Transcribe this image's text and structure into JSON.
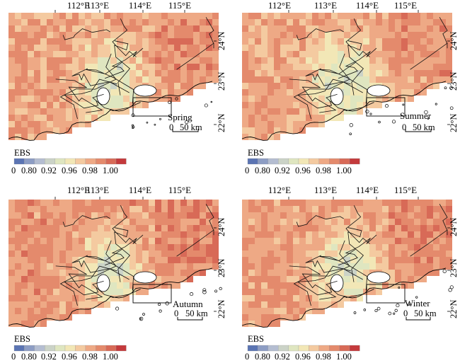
{
  "colorbar": {
    "title": "EBS",
    "tick_labels": [
      "0",
      "0.80",
      "0.92",
      "0.96",
      "0.98",
      "1.00"
    ],
    "colors": [
      "#5b74b3",
      "#8d9dc4",
      "#b4bdd1",
      "#cbd3c7",
      "#dfe6c0",
      "#f2e7b6",
      "#f4caa0",
      "#eea985",
      "#e48a6c",
      "#d86a57",
      "#c43a3c"
    ]
  },
  "longitude_labels": [
    "112°E",
    "113°E",
    "114°E",
    "115°E"
  ],
  "latitude_labels": [
    "24°N",
    "23°N",
    "22°N"
  ],
  "scale_bar": {
    "zero": "0",
    "distance": "50 km"
  },
  "panels": [
    {
      "season": "Spring"
    },
    {
      "season": "Summer"
    },
    {
      "season": "Autumn"
    },
    {
      "season": "Winter"
    }
  ]
}
